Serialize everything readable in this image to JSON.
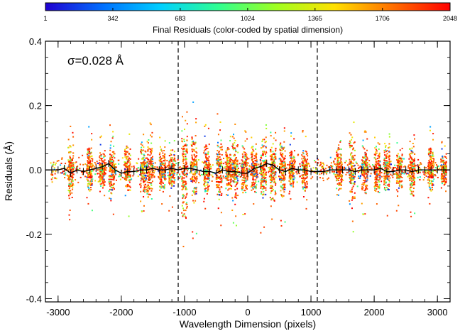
{
  "chart_data": {
    "type": "scatter",
    "colorbar": {
      "ticks": [
        "1",
        "342",
        "683",
        "1024",
        "1365",
        "1706",
        "2048"
      ],
      "min": 1,
      "max": 2048,
      "title": "Final Residuals (color-coded by spatial dimension)",
      "colormap": [
        "#2000d0",
        "#0070ff",
        "#00d0ff",
        "#30ff90",
        "#a0ff20",
        "#ffe000",
        "#ff7000",
        "#ff0000"
      ]
    },
    "xlabel": "Wavelength Dimension (pixels)",
    "ylabel": "Residuals (Å)",
    "xlim": [
      -3200,
      3200
    ],
    "ylim": [
      -0.41,
      0.4
    ],
    "x_ticks": [
      "-3000",
      "-2000",
      "-1000",
      "0",
      "1000",
      "2000",
      "3000"
    ],
    "x_tick_values": [
      -3000,
      -2000,
      -1000,
      0,
      1000,
      2000,
      3000
    ],
    "y_ticks": [
      "-0.4",
      "-0.2",
      "0.0",
      "0.2",
      "0.4"
    ],
    "y_tick_values": [
      -0.4,
      -0.2,
      0.0,
      0.2,
      0.4
    ],
    "annotation": "σ=0.028 Å",
    "reference_lines_x": [
      -1100,
      1100
    ],
    "running_mean": {
      "x": [
        -3200,
        -3100,
        -3000,
        -2900,
        -2800,
        -2700,
        -2600,
        -2500,
        -2400,
        -2300,
        -2200,
        -2100,
        -2000,
        -1900,
        -1800,
        -1700,
        -1600,
        -1500,
        -1400,
        -1300,
        -1200,
        -1100,
        -1000,
        -900,
        -800,
        -700,
        -600,
        -500,
        -400,
        -300,
        -200,
        -100,
        0,
        100,
        200,
        300,
        400,
        500,
        600,
        700,
        800,
        900,
        1000,
        1100,
        1200,
        1300,
        1400,
        1500,
        1600,
        1700,
        1800,
        1900,
        2000,
        2100,
        2200,
        2300,
        2400,
        2500,
        2600,
        2700,
        2800,
        2900,
        3000,
        3100,
        3200
      ],
      "y": [
        0.0,
        0.0,
        0.0,
        0.005,
        -0.01,
        0.0,
        -0.005,
        0.0,
        0.005,
        0.01,
        0.02,
        0.0,
        -0.01,
        -0.005,
        -0.005,
        0.0,
        0.0,
        0.005,
        0.0,
        0.0,
        0.005,
        0.0,
        0.005,
        0.005,
        0.0,
        -0.005,
        -0.005,
        -0.01,
        0.0,
        -0.005,
        -0.005,
        -0.01,
        -0.01,
        0.005,
        0.01,
        0.02,
        0.015,
        0.0,
        -0.005,
        0.005,
        0.0,
        0.0,
        -0.005,
        -0.005,
        -0.005,
        0.0,
        0.0,
        0.0,
        0.0,
        -0.005,
        0.0,
        0.0,
        0.0,
        0.005,
        -0.005,
        -0.005,
        0.0,
        0.0,
        -0.005,
        0.0,
        0.0,
        0.0,
        0.0,
        0.0,
        0.0
      ]
    },
    "clusters": [
      {
        "x": -2800,
        "spread": 0.16
      },
      {
        "x": -2500,
        "spread": 0.14
      },
      {
        "x": -2300,
        "spread": 0.12
      },
      {
        "x": -2150,
        "spread": 0.16
      },
      {
        "x": -1900,
        "spread": 0.15
      },
      {
        "x": -1650,
        "spread": 0.14
      },
      {
        "x": -1550,
        "spread": 0.18
      },
      {
        "x": -1350,
        "spread": 0.14
      },
      {
        "x": -1200,
        "spread": 0.13
      },
      {
        "x": -1000,
        "spread": 0.28
      },
      {
        "x": -850,
        "spread": 0.22
      },
      {
        "x": -650,
        "spread": 0.16
      },
      {
        "x": -450,
        "spread": 0.2
      },
      {
        "x": -300,
        "spread": 0.14
      },
      {
        "x": -200,
        "spread": 0.18
      },
      {
        "x": -50,
        "spread": 0.15
      },
      {
        "x": 100,
        "spread": 0.14
      },
      {
        "x": 250,
        "spread": 0.2
      },
      {
        "x": 400,
        "spread": 0.18
      },
      {
        "x": 550,
        "spread": 0.18
      },
      {
        "x": 700,
        "spread": 0.12
      },
      {
        "x": 900,
        "spread": 0.14
      },
      {
        "x": 1450,
        "spread": 0.14
      },
      {
        "x": 1650,
        "spread": 0.2
      },
      {
        "x": 1850,
        "spread": 0.15
      },
      {
        "x": 2050,
        "spread": 0.14
      },
      {
        "x": 2200,
        "spread": 0.16
      },
      {
        "x": 2400,
        "spread": 0.13
      },
      {
        "x": 2600,
        "spread": 0.15
      },
      {
        "x": 2900,
        "spread": 0.14
      },
      {
        "x": 3100,
        "spread": 0.1
      }
    ]
  }
}
